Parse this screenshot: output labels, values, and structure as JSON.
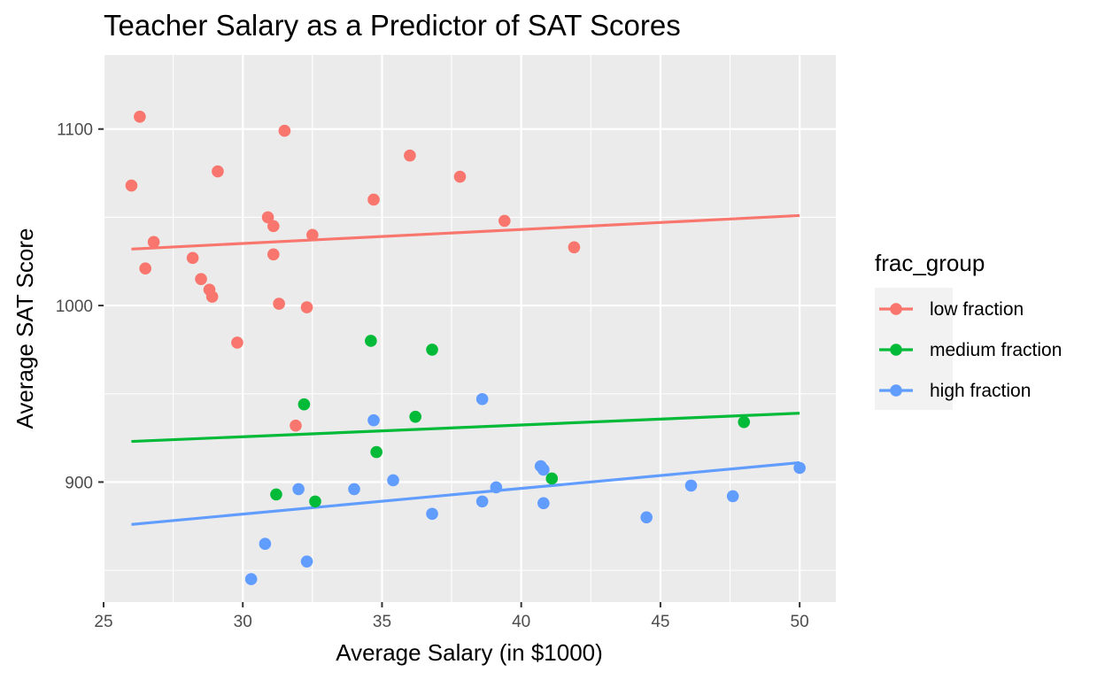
{
  "chart_data": {
    "type": "scatter",
    "title": "Teacher Salary as a Predictor of SAT Scores",
    "xlabel": "Average Salary (in $1000)",
    "ylabel": "Average SAT Score",
    "xlim": [
      25,
      51.3
    ],
    "ylim": [
      832,
      1142
    ],
    "x_ticks": [
      25,
      30,
      35,
      40,
      45,
      50
    ],
    "y_ticks": [
      900,
      1000,
      1100
    ],
    "x_tick_labels": [
      "25",
      "30",
      "35",
      "40",
      "45",
      "50"
    ],
    "y_tick_labels": [
      "900",
      "1000",
      "1100"
    ],
    "grid": true,
    "legend": {
      "title": "frac_group",
      "position": "right"
    },
    "series": [
      {
        "name": "low fraction",
        "color": "#F8766D",
        "points": [
          {
            "x": 26.3,
            "y": 1107
          },
          {
            "x": 26.0,
            "y": 1068
          },
          {
            "x": 26.8,
            "y": 1036
          },
          {
            "x": 26.5,
            "y": 1021
          },
          {
            "x": 29.1,
            "y": 1076
          },
          {
            "x": 28.2,
            "y": 1027
          },
          {
            "x": 28.5,
            "y": 1015
          },
          {
            "x": 28.8,
            "y": 1009
          },
          {
            "x": 28.9,
            "y": 1005
          },
          {
            "x": 29.8,
            "y": 979
          },
          {
            "x": 31.5,
            "y": 1099
          },
          {
            "x": 30.9,
            "y": 1050
          },
          {
            "x": 31.1,
            "y": 1045
          },
          {
            "x": 31.1,
            "y": 1029
          },
          {
            "x": 31.3,
            "y": 1001
          },
          {
            "x": 32.5,
            "y": 1040
          },
          {
            "x": 32.3,
            "y": 999
          },
          {
            "x": 31.9,
            "y": 932
          },
          {
            "x": 34.7,
            "y": 1060
          },
          {
            "x": 36.0,
            "y": 1085
          },
          {
            "x": 37.8,
            "y": 1073
          },
          {
            "x": 39.4,
            "y": 1048
          },
          {
            "x": 41.9,
            "y": 1033
          }
        ],
        "trend": {
          "x": [
            26.0,
            50.0
          ],
          "y": [
            1032,
            1051
          ]
        }
      },
      {
        "name": "medium fraction",
        "color": "#00BA38",
        "points": [
          {
            "x": 34.6,
            "y": 980
          },
          {
            "x": 36.8,
            "y": 975
          },
          {
            "x": 32.2,
            "y": 944
          },
          {
            "x": 36.2,
            "y": 937
          },
          {
            "x": 34.8,
            "y": 917
          },
          {
            "x": 31.2,
            "y": 893
          },
          {
            "x": 32.6,
            "y": 889
          },
          {
            "x": 41.1,
            "y": 902
          },
          {
            "x": 48.0,
            "y": 934
          }
        ],
        "trend": {
          "x": [
            26.0,
            50.0
          ],
          "y": [
            923,
            939
          ]
        }
      },
      {
        "name": "high fraction",
        "color": "#619CFF",
        "points": [
          {
            "x": 38.6,
            "y": 947
          },
          {
            "x": 34.7,
            "y": 935
          },
          {
            "x": 40.7,
            "y": 909
          },
          {
            "x": 40.8,
            "y": 907
          },
          {
            "x": 35.4,
            "y": 901
          },
          {
            "x": 39.1,
            "y": 897
          },
          {
            "x": 34.0,
            "y": 896
          },
          {
            "x": 32.0,
            "y": 896
          },
          {
            "x": 36.8,
            "y": 882
          },
          {
            "x": 38.6,
            "y": 889
          },
          {
            "x": 40.8,
            "y": 888
          },
          {
            "x": 44.5,
            "y": 880
          },
          {
            "x": 46.1,
            "y": 898
          },
          {
            "x": 47.6,
            "y": 892
          },
          {
            "x": 50.0,
            "y": 908
          },
          {
            "x": 30.8,
            "y": 865
          },
          {
            "x": 32.3,
            "y": 855
          },
          {
            "x": 30.3,
            "y": 845
          }
        ],
        "trend": {
          "x": [
            26.0,
            50.0
          ],
          "y": [
            876,
            911
          ]
        }
      }
    ]
  }
}
